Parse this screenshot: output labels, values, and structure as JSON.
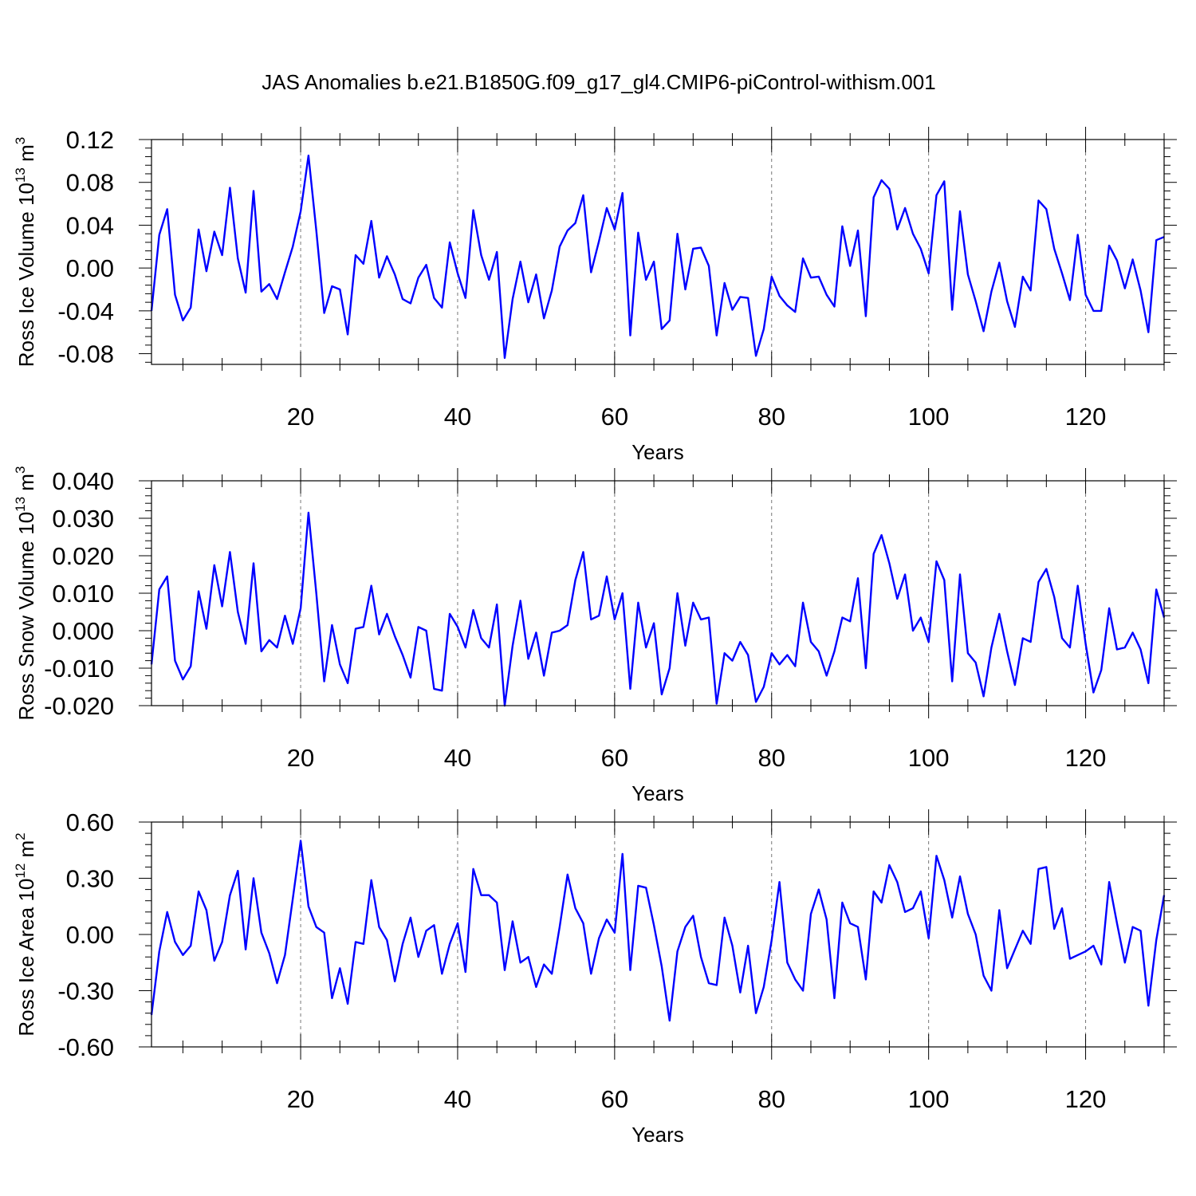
{
  "title": "JAS Anomalies b.e21.B1850G.f09_g17_gl4.CMIP6-piControl-withism.001",
  "colors": {
    "series": "#0000ff",
    "axis": "#000000",
    "grid": "#777777"
  },
  "chart_data": [
    {
      "type": "line",
      "ylabel": "Ross Ice Volume 10",
      "ylabel_exp": "13",
      "ylabel_unit": " m",
      "ylabel_unit_exp": "3",
      "xlabel": "Years",
      "xlim": [
        1,
        130
      ],
      "ylim": [
        -0.09,
        0.12
      ],
      "yticks": [
        -0.08,
        -0.04,
        0.0,
        0.04,
        0.08,
        0.12
      ],
      "ytick_labels": [
        "-0.08",
        "-0.04",
        "0.00",
        "0.04",
        "0.08",
        "0.12"
      ],
      "xticks": [
        20,
        40,
        60,
        80,
        100,
        120
      ],
      "xtick_labels": [
        "20",
        "40",
        "60",
        "80",
        "100",
        "120"
      ],
      "series": [
        {
          "name": "Ross Ice Volume",
          "values": [
            -0.04,
            0.031,
            0.055,
            -0.025,
            -0.049,
            -0.037,
            0.036,
            -0.003,
            0.034,
            0.012,
            0.075,
            0.009,
            -0.023,
            0.072,
            -0.022,
            -0.015,
            -0.029,
            -0.004,
            0.02,
            0.053,
            0.105,
            0.035,
            -0.042,
            -0.017,
            -0.02,
            -0.062,
            0.012,
            0.004,
            0.044,
            -0.009,
            0.011,
            -0.006,
            -0.029,
            -0.033,
            -0.009,
            0.003,
            -0.028,
            -0.037,
            0.024,
            -0.005,
            -0.028,
            0.054,
            0.012,
            -0.011,
            0.015,
            -0.084,
            -0.029,
            0.006,
            -0.032,
            -0.006,
            -0.047,
            -0.021,
            0.02,
            0.035,
            0.042,
            0.068,
            -0.004,
            0.025,
            0.056,
            0.036,
            0.07,
            -0.063,
            0.033,
            -0.011,
            0.006,
            -0.057,
            -0.049,
            0.032,
            -0.02,
            0.018,
            0.019,
            0.002,
            -0.063,
            -0.014,
            -0.039,
            -0.027,
            -0.028,
            -0.082,
            -0.057,
            -0.008,
            -0.026,
            -0.035,
            -0.041,
            0.009,
            -0.009,
            -0.008,
            -0.025,
            -0.036,
            0.039,
            0.002,
            0.035,
            -0.045,
            0.066,
            0.082,
            0.074,
            0.036,
            0.056,
            0.032,
            0.018,
            -0.005,
            0.068,
            0.081,
            -0.039,
            0.053,
            -0.006,
            -0.031,
            -0.059,
            -0.022,
            0.005,
            -0.031,
            -0.055,
            -0.008,
            -0.021,
            0.063,
            0.055,
            0.018,
            -0.005,
            -0.03,
            0.031,
            -0.025,
            -0.04,
            -0.04,
            0.021,
            0.007,
            -0.019,
            0.008,
            -0.021,
            -0.06,
            0.026,
            0.029
          ]
        }
      ]
    },
    {
      "type": "line",
      "ylabel": "Ross Snow Volume 10",
      "ylabel_exp": "13",
      "ylabel_unit": " m",
      "ylabel_unit_exp": "3",
      "xlabel": "Years",
      "xlim": [
        1,
        130
      ],
      "ylim": [
        -0.02,
        0.04
      ],
      "yticks": [
        -0.02,
        -0.01,
        0.0,
        0.01,
        0.02,
        0.03,
        0.04
      ],
      "ytick_labels": [
        "-0.020",
        "-0.010",
        "0.000",
        "0.010",
        "0.020",
        "0.030",
        "0.040"
      ],
      "xticks": [
        20,
        40,
        60,
        80,
        100,
        120
      ],
      "xtick_labels": [
        "20",
        "40",
        "60",
        "80",
        "100",
        "120"
      ],
      "series": [
        {
          "name": "Ross Snow Volume",
          "values": [
            -0.009,
            0.011,
            0.0145,
            -0.008,
            -0.013,
            -0.0095,
            0.0105,
            0.0005,
            0.0175,
            0.0065,
            0.021,
            0.005,
            -0.0035,
            0.018,
            -0.0055,
            -0.0025,
            -0.0045,
            0.004,
            -0.0035,
            0.006,
            0.0315,
            0.01,
            -0.0135,
            0.0015,
            -0.009,
            -0.014,
            0.0005,
            0.001,
            0.012,
            -0.001,
            0.0045,
            -0.0015,
            -0.0065,
            -0.0125,
            0.001,
            0.0,
            -0.0155,
            -0.016,
            0.0045,
            0.001,
            -0.0045,
            0.0055,
            -0.002,
            -0.0045,
            0.007,
            -0.02,
            -0.004,
            0.008,
            -0.0075,
            -0.0005,
            -0.012,
            -0.0005,
            0.0,
            0.0015,
            0.0135,
            0.021,
            0.003,
            0.004,
            0.0145,
            0.003,
            0.01,
            -0.0155,
            0.0075,
            -0.0045,
            0.002,
            -0.017,
            -0.01,
            0.01,
            -0.004,
            0.0075,
            0.003,
            0.0035,
            -0.0195,
            -0.006,
            -0.008,
            -0.003,
            -0.0065,
            -0.019,
            -0.015,
            -0.006,
            -0.009,
            -0.0065,
            -0.0095,
            0.0075,
            -0.003,
            -0.0055,
            -0.012,
            -0.0055,
            0.0035,
            0.0025,
            0.014,
            -0.01,
            0.0205,
            0.0255,
            0.018,
            0.0085,
            0.015,
            0.0,
            0.0035,
            -0.003,
            0.0185,
            0.0135,
            -0.0135,
            0.015,
            -0.006,
            -0.0085,
            -0.0175,
            -0.0045,
            0.0045,
            -0.0055,
            -0.0145,
            -0.002,
            -0.003,
            0.013,
            0.0165,
            0.009,
            -0.002,
            -0.0045,
            0.012,
            -0.0035,
            -0.0165,
            -0.0105,
            0.006,
            -0.005,
            -0.0045,
            -0.0005,
            -0.005,
            -0.014,
            0.011,
            0.0035
          ]
        }
      ]
    },
    {
      "type": "line",
      "ylabel": "Ross Ice Area 10",
      "ylabel_exp": "12",
      "ylabel_unit": " m",
      "ylabel_unit_exp": "2",
      "xlabel": "Years",
      "xlim": [
        1,
        130
      ],
      "ylim": [
        -0.6,
        0.6
      ],
      "yticks": [
        -0.6,
        -0.3,
        0.0,
        0.3,
        0.6
      ],
      "ytick_labels": [
        "-0.60",
        "-0.30",
        "0.00",
        "0.30",
        "0.60"
      ],
      "xticks": [
        20,
        40,
        60,
        80,
        100,
        120
      ],
      "xtick_labels": [
        "20",
        "40",
        "60",
        "80",
        "100",
        "120"
      ],
      "series": [
        {
          "name": "Ross Ice Area",
          "values": [
            -0.43,
            -0.09,
            0.12,
            -0.04,
            -0.11,
            -0.06,
            0.23,
            0.13,
            -0.14,
            -0.04,
            0.21,
            0.34,
            -0.08,
            0.3,
            0.01,
            -0.1,
            -0.26,
            -0.11,
            0.19,
            0.5,
            0.15,
            0.04,
            0.01,
            -0.34,
            -0.18,
            -0.37,
            -0.04,
            -0.05,
            0.29,
            0.04,
            -0.03,
            -0.25,
            -0.05,
            0.09,
            -0.12,
            0.02,
            0.05,
            -0.21,
            -0.05,
            0.06,
            -0.2,
            0.35,
            0.21,
            0.21,
            0.17,
            -0.19,
            0.07,
            -0.15,
            -0.12,
            -0.28,
            -0.16,
            -0.21,
            0.04,
            0.32,
            0.14,
            0.06,
            -0.21,
            -0.02,
            0.08,
            0.01,
            0.43,
            -0.19,
            0.26,
            0.25,
            0.05,
            -0.17,
            -0.46,
            -0.09,
            0.04,
            0.1,
            -0.12,
            -0.26,
            -0.27,
            0.09,
            -0.06,
            -0.31,
            -0.06,
            -0.42,
            -0.28,
            -0.03,
            0.28,
            -0.15,
            -0.24,
            -0.3,
            0.11,
            0.24,
            0.08,
            -0.34,
            0.17,
            0.06,
            0.04,
            -0.24,
            0.23,
            0.17,
            0.37,
            0.28,
            0.12,
            0.14,
            0.23,
            -0.02,
            0.42,
            0.29,
            0.09,
            0.31,
            0.11,
            0.0,
            -0.22,
            -0.3,
            0.13,
            -0.18,
            -0.08,
            0.02,
            -0.05,
            0.35,
            0.36,
            0.03,
            0.14,
            -0.13,
            -0.11,
            -0.09,
            -0.06,
            -0.16,
            0.28,
            0.06,
            -0.15,
            0.04,
            0.02,
            -0.38,
            -0.03,
            0.21
          ]
        }
      ]
    }
  ]
}
